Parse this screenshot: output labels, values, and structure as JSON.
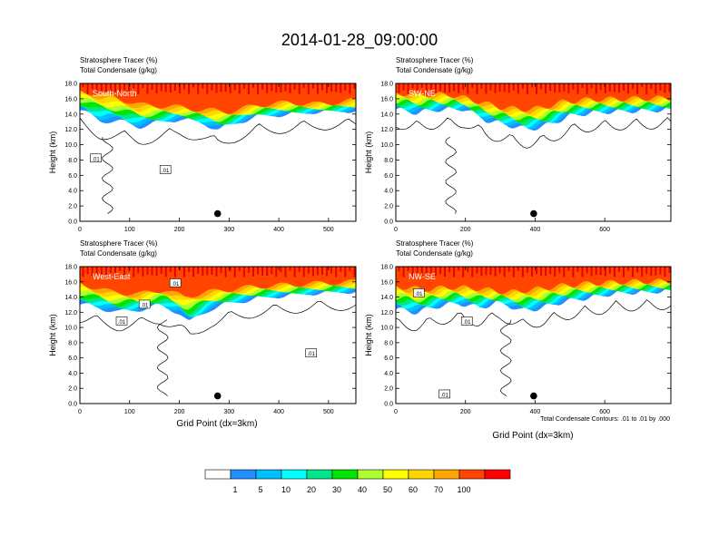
{
  "page": {
    "title": "2014-01-28_09:00:00",
    "x_axis_label": "Grid Point (dx=3km)",
    "contour_note": "Total Condensate Contours: .01 to .01 by .000"
  },
  "chart_data": [
    {
      "type": "heatmap",
      "panel_label": "South-North",
      "title_left": "Stratosphere Tracer   (%)",
      "subtitle_left": "Total Condensate   (g/kg)",
      "ylabel": "Height (km)",
      "xlim": [
        0,
        555
      ],
      "ylim": [
        0,
        18
      ],
      "xticks": [
        "0",
        "100",
        "200",
        "300",
        "400",
        "500"
      ],
      "yticks": [
        "0.0",
        "2.0",
        "4.0",
        "6.0",
        "8.0",
        "10.0",
        "12.0",
        "14.0",
        "16.0",
        "18.0"
      ],
      "contour_labels": [
        {
          "text": ".01",
          "x": 32,
          "y": 8.2
        },
        {
          "text": ".01",
          "x": 172,
          "y": 6.7
        }
      ],
      "marker": {
        "x": 277,
        "y": 1.0
      },
      "tracer_base_km": [
        [
          0,
          14.5
        ],
        [
          40,
          13.2
        ],
        [
          80,
          13.0
        ],
        [
          120,
          12.4
        ],
        [
          160,
          12.9
        ],
        [
          200,
          13.4
        ],
        [
          240,
          13.0
        ],
        [
          280,
          12.0
        ],
        [
          320,
          13.0
        ],
        [
          360,
          13.8
        ],
        [
          420,
          14.0
        ],
        [
          480,
          14.4
        ],
        [
          555,
          14.5
        ]
      ],
      "core_base_km": [
        [
          0,
          17.0
        ],
        [
          60,
          16.4
        ],
        [
          120,
          15.2
        ],
        [
          180,
          15.0
        ],
        [
          240,
          14.6
        ],
        [
          300,
          14.3
        ],
        [
          360,
          15.2
        ],
        [
          420,
          15.5
        ],
        [
          480,
          15.3
        ],
        [
          555,
          15.8
        ]
      ]
    },
    {
      "type": "heatmap",
      "panel_label": "SW-NE",
      "title_left": "Stratosphere Tracer   (%)",
      "subtitle_left": "Total Condensate   (g/kg)",
      "ylabel": "Height (km)",
      "xlim": [
        0,
        790
      ],
      "ylim": [
        0,
        18
      ],
      "xticks": [
        "0",
        "200",
        "400",
        "600"
      ],
      "yticks": [
        "0.0",
        "2.0",
        "4.0",
        "6.0",
        "8.0",
        "10.0",
        "12.0",
        "14.0",
        "16.0",
        "18.0"
      ],
      "contour_labels": [],
      "marker": {
        "x": 396,
        "y": 1.0
      },
      "tracer_base_km": [
        [
          0,
          14.6
        ],
        [
          60,
          14.2
        ],
        [
          120,
          14.6
        ],
        [
          200,
          14.7
        ],
        [
          260,
          13.2
        ],
        [
          320,
          12.6
        ],
        [
          380,
          12.0
        ],
        [
          440,
          12.6
        ],
        [
          500,
          13.8
        ],
        [
          560,
          14.2
        ],
        [
          640,
          14.4
        ],
        [
          720,
          14.5
        ],
        [
          790,
          14.6
        ]
      ],
      "core_base_km": [
        [
          0,
          16.7
        ],
        [
          80,
          16.6
        ],
        [
          160,
          16.5
        ],
        [
          240,
          15.6
        ],
        [
          300,
          14.9
        ],
        [
          360,
          14.6
        ],
        [
          420,
          14.8
        ],
        [
          480,
          15.6
        ],
        [
          560,
          15.9
        ],
        [
          660,
          16.0
        ],
        [
          790,
          16.1
        ]
      ]
    },
    {
      "type": "heatmap",
      "panel_label": "West-East",
      "title_left": "Stratosphere Tracer   (%)",
      "subtitle_left": "Total Condensate   (g/kg)",
      "ylabel": "Height (km)",
      "xlim": [
        0,
        555
      ],
      "ylim": [
        0,
        18
      ],
      "xticks": [
        "0",
        "100",
        "200",
        "300",
        "400",
        "500"
      ],
      "yticks": [
        "0.0",
        "2.0",
        "4.0",
        "6.0",
        "8.0",
        "10.0",
        "12.0",
        "14.0",
        "16.0",
        "18.0"
      ],
      "contour_labels": [
        {
          "text": ".01",
          "x": 192,
          "y": 15.8
        },
        {
          "text": ".01",
          "x": 130,
          "y": 13.0
        },
        {
          "text": ".01",
          "x": 84,
          "y": 10.8
        },
        {
          "text": ".01",
          "x": 465,
          "y": 6.6
        }
      ],
      "marker": {
        "x": 277,
        "y": 1.0
      },
      "tracer_base_km": [
        [
          0,
          13.0
        ],
        [
          40,
          12.6
        ],
        [
          80,
          12.0
        ],
        [
          120,
          12.4
        ],
        [
          160,
          12.9
        ],
        [
          200,
          12.0
        ],
        [
          220,
          10.6
        ],
        [
          260,
          12.4
        ],
        [
          300,
          13.2
        ],
        [
          360,
          13.9
        ],
        [
          420,
          14.3
        ],
        [
          480,
          14.6
        ],
        [
          555,
          14.8
        ]
      ],
      "core_base_km": [
        [
          0,
          15.8
        ],
        [
          60,
          14.7
        ],
        [
          120,
          14.4
        ],
        [
          170,
          15.0
        ],
        [
          210,
          14.0
        ],
        [
          250,
          14.6
        ],
        [
          300,
          15.0
        ],
        [
          360,
          15.4
        ],
        [
          420,
          15.6
        ],
        [
          480,
          15.8
        ],
        [
          555,
          16.0
        ]
      ]
    },
    {
      "type": "heatmap",
      "panel_label": "NW-SE",
      "title_left": "Stratosphere Tracer   (%)",
      "subtitle_left": "Total Condensate   (g/kg)",
      "ylabel": "Height (km)",
      "xlim": [
        0,
        790
      ],
      "ylim": [
        0,
        18
      ],
      "xticks": [
        "0",
        "200",
        "400",
        "600"
      ],
      "yticks": [
        "0.0",
        "2.0",
        "4.0",
        "6.0",
        "8.0",
        "10.0",
        "12.0",
        "14.0",
        "16.0",
        "18.0"
      ],
      "contour_labels": [
        {
          "text": ".01",
          "x": 66,
          "y": 14.5
        },
        {
          "text": ".01",
          "x": 204,
          "y": 10.8
        },
        {
          "text": ".01",
          "x": 140,
          "y": 1.2
        }
      ],
      "marker": {
        "x": 396,
        "y": 1.0
      },
      "tracer_base_km": [
        [
          0,
          12.4
        ],
        [
          60,
          12.0
        ],
        [
          120,
          12.8
        ],
        [
          180,
          13.2
        ],
        [
          240,
          12.6
        ],
        [
          300,
          13.4
        ],
        [
          360,
          12.2
        ],
        [
          420,
          12.6
        ],
        [
          480,
          13.4
        ],
        [
          560,
          14.0
        ],
        [
          640,
          14.6
        ],
        [
          720,
          14.7
        ],
        [
          790,
          14.9
        ]
      ],
      "core_base_km": [
        [
          0,
          15.4
        ],
        [
          80,
          15.0
        ],
        [
          160,
          15.3
        ],
        [
          240,
          15.1
        ],
        [
          320,
          14.6
        ],
        [
          400,
          15.0
        ],
        [
          480,
          15.5
        ],
        [
          560,
          15.8
        ],
        [
          660,
          16.0
        ],
        [
          790,
          16.1
        ]
      ]
    }
  ],
  "colorbar": {
    "colors": [
      "#ffffff",
      "#1e90ff",
      "#00bfff",
      "#00ffff",
      "#00e68a",
      "#00e600",
      "#adff2f",
      "#ffff00",
      "#ffd700",
      "#ffa500",
      "#ff4500",
      "#ff0000"
    ],
    "labels": [
      "1",
      "5",
      "10",
      "20",
      "30",
      "40",
      "50",
      "60",
      "70",
      "100"
    ]
  }
}
